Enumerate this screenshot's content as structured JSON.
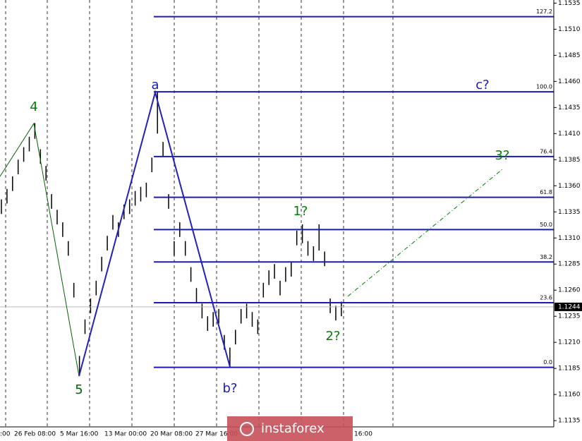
{
  "chart_data": {
    "type": "ohlc",
    "xlabels": [
      ":00",
      "26 Feb 08:00",
      "5 Mar 16:00",
      "13 Mar 00:00",
      "20 Mar 08:00",
      "27 Mar 16:00",
      "16:00"
    ],
    "high": [
      1.1347,
      1.1357,
      1.1369,
      1.1385,
      1.1397,
      1.1407,
      1.142,
      1.1395,
      1.1379,
      1.1352,
      1.1337,
      1.1325,
      1.1307,
      1.1267,
      1.1197,
      1.1232,
      1.1252,
      1.1269,
      1.1292,
      1.1312,
      1.1332,
      1.1325,
      1.1342,
      1.1347,
      1.1355,
      1.1359,
      1.1363,
      1.1387,
      1.145,
      1.1402,
      1.1352,
      1.1307,
      1.1325,
      1.1307,
      1.1282,
      1.1262,
      1.1247,
      1.1235,
      1.1239,
      1.1242,
      1.1217,
      1.1205,
      1.1222,
      1.1242,
      1.1247,
      1.1239,
      1.1232,
      1.1267,
      1.1279,
      1.1285,
      1.1269,
      1.1282,
      1.1287,
      1.1317,
      1.1323,
      1.1307,
      1.1302,
      1.1323,
      1.1297,
      1.1252,
      1.1245,
      1.1249
    ],
    "low": [
      1.1333,
      1.1343,
      1.1355,
      1.1371,
      1.1383,
      1.1393,
      1.1405,
      1.1381,
      1.1365,
      1.1338,
      1.1323,
      1.1311,
      1.1293,
      1.1253,
      1.1178,
      1.1218,
      1.1238,
      1.1255,
      1.1278,
      1.1298,
      1.1318,
      1.1311,
      1.1328,
      1.1333,
      1.1341,
      1.1345,
      1.1349,
      1.1373,
      1.141,
      1.1388,
      1.1338,
      1.1293,
      1.1311,
      1.1293,
      1.1268,
      1.1248,
      1.1233,
      1.1221,
      1.1225,
      1.1228,
      1.1203,
      1.1186,
      1.1208,
      1.1228,
      1.1233,
      1.1225,
      1.1218,
      1.1253,
      1.1265,
      1.1271,
      1.1255,
      1.1268,
      1.1273,
      1.1303,
      1.1305,
      1.1293,
      1.1288,
      1.1298,
      1.1283,
      1.1238,
      1.1231,
      1.1235
    ],
    "ylim": [
      1.1129,
      1.1538
    ],
    "yticks": [
      1.1535,
      {
        "value": 1.151,
        "label": "1.1510"
      },
      1.1485,
      {
        "value": 1.146,
        "label": "1.1460"
      },
      1.1435,
      {
        "value": 1.141,
        "label": "1.1410"
      },
      1.1385,
      {
        "value": 1.136,
        "label": "1.1360"
      },
      1.1335,
      {
        "value": 1.131,
        "label": "1.1310"
      },
      1.1285,
      {
        "value": 1.126,
        "label": "1.1260"
      },
      1.1235,
      {
        "value": 1.121,
        "label": "1.1210"
      },
      1.1185,
      {
        "value": 1.116,
        "label": "1.1160"
      },
      1.1135
    ],
    "fib_levels": [
      {
        "label": "127.2",
        "value": 1.1522
      },
      {
        "label": "100.0",
        "value": 1.145
      },
      {
        "label": "76.4",
        "value": 1.1388
      },
      {
        "label": "61.8",
        "value": 1.1349
      },
      {
        "label": "50.0",
        "value": 1.1318
      },
      {
        "label": "38.2",
        "value": 1.1287
      },
      {
        "label": "23.6",
        "value": 1.1248
      },
      {
        "label": "0.0",
        "value": 1.1186
      }
    ],
    "current_price": 1.1244,
    "wave_labels": [
      "4",
      "5",
      "a",
      "b?",
      "c?",
      "1?",
      "2?",
      "3?"
    ],
    "watermark": "instaforex"
  }
}
